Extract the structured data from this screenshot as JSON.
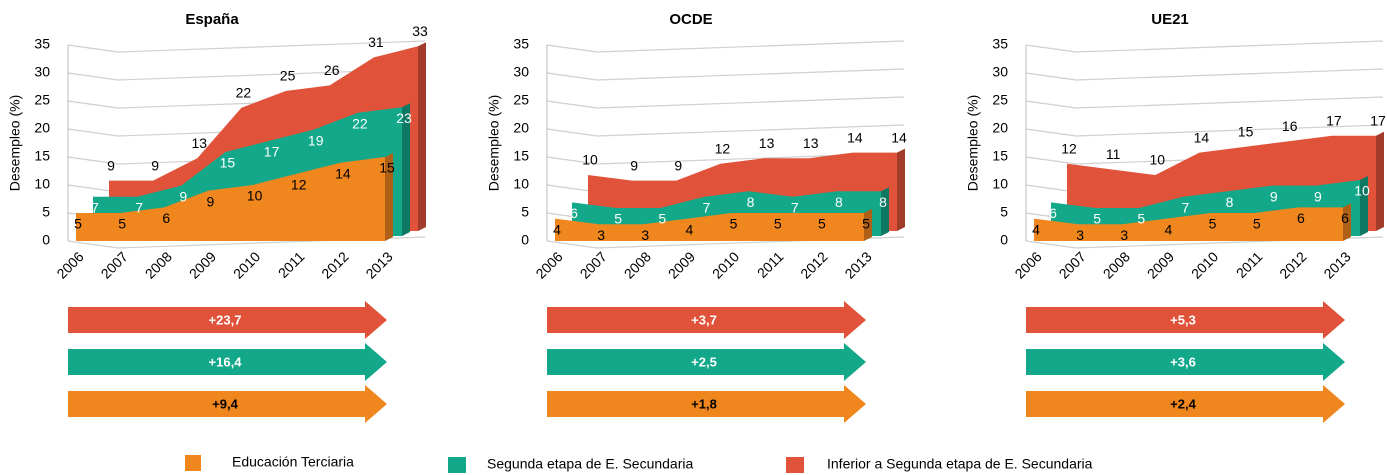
{
  "chart_data": [
    {
      "type": "area3d",
      "title": "España",
      "ylabel": "Desempleo (%)",
      "categories": [
        "2006",
        "2007",
        "2008",
        "2009",
        "2010",
        "2011",
        "2012",
        "2013"
      ],
      "ylim": [
        0,
        35
      ],
      "yticks": [
        0,
        5,
        10,
        15,
        20,
        25,
        30,
        35
      ],
      "grid": true,
      "series": [
        {
          "name": "Educación Terciaria",
          "color": "#f0861e",
          "values": [
            5,
            5,
            6,
            9,
            10,
            12,
            14,
            15
          ]
        },
        {
          "name": "Segunda etapa de E. Secundaria",
          "color": "#12a889",
          "values": [
            7,
            7,
            9,
            15,
            17,
            19,
            22,
            23
          ]
        },
        {
          "name": "Inferior a Segunda etapa de E. Secundaria",
          "color": "#e0533a",
          "values": [
            9,
            9,
            13,
            22,
            25,
            26,
            31,
            33
          ]
        }
      ],
      "changes": [
        "+23,7",
        "+16,4",
        "+9,4"
      ]
    },
    {
      "type": "area3d",
      "title": "OCDE",
      "ylabel": "Desempleo (%)",
      "categories": [
        "2006",
        "2007",
        "2008",
        "2009",
        "2010",
        "2011",
        "2012",
        "2013"
      ],
      "ylim": [
        0,
        35
      ],
      "yticks": [
        0,
        5,
        10,
        15,
        20,
        25,
        30,
        35
      ],
      "grid": true,
      "series": [
        {
          "name": "Educación Terciaria",
          "color": "#f0861e",
          "values": [
            4,
            3,
            3,
            4,
            5,
            5,
            5,
            5
          ]
        },
        {
          "name": "Segunda etapa de E. Secundaria",
          "color": "#12a889",
          "values": [
            6,
            5,
            5,
            7,
            8,
            7,
            8,
            8
          ]
        },
        {
          "name": "Inferior a Segunda etapa de E. Secundaria",
          "color": "#e0533a",
          "values": [
            10,
            9,
            9,
            12,
            13,
            13,
            14,
            14
          ]
        }
      ],
      "changes": [
        "+3,7",
        "+2,5",
        "+1,8"
      ]
    },
    {
      "type": "area3d",
      "title": "UE21",
      "ylabel": "Desempleo (%)",
      "categories": [
        "2006",
        "2007",
        "2008",
        "2009",
        "2010",
        "2011",
        "2012",
        "2013"
      ],
      "ylim": [
        0,
        35
      ],
      "yticks": [
        0,
        5,
        10,
        15,
        20,
        25,
        30,
        35
      ],
      "grid": true,
      "series": [
        {
          "name": "Educación Terciaria",
          "color": "#f0861e",
          "values": [
            4,
            3,
            3,
            4,
            5,
            5,
            6,
            6
          ]
        },
        {
          "name": "Segunda etapa de E. Secundaria",
          "color": "#12a889",
          "values": [
            6,
            5,
            5,
            7,
            8,
            9,
            9,
            10
          ]
        },
        {
          "name": "Inferior a Segunda etapa de E. Secundaria",
          "color": "#e0533a",
          "values": [
            12,
            11,
            10,
            14,
            15,
            16,
            17,
            17
          ]
        }
      ],
      "changes": [
        "+5,3",
        "+3,6",
        "+2,4"
      ]
    }
  ]
}
